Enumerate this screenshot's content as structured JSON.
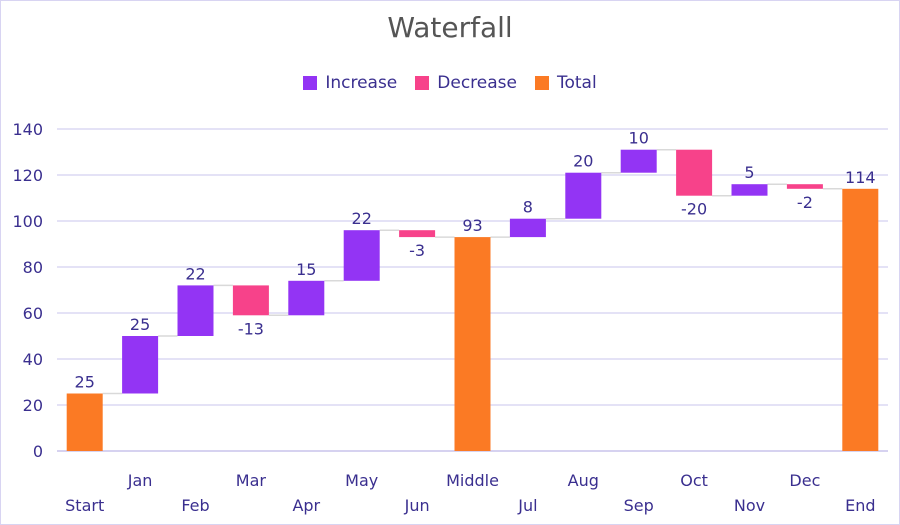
{
  "colors": {
    "increase": "#9334f4",
    "decrease": "#f7428a",
    "total": "#fb7a24",
    "grid": "#c9c4ec",
    "text": "#3a2f8f",
    "connector": "#d9d9d9"
  },
  "chart_data": {
    "type": "bar",
    "subtype": "waterfall",
    "title": "Waterfall",
    "xlabel": "",
    "ylabel": "",
    "ylim": [
      0,
      140
    ],
    "yticks": [
      0,
      20,
      40,
      60,
      80,
      100,
      120,
      140
    ],
    "grid": true,
    "legend_position": "top",
    "legend": [
      {
        "key": "increase",
        "label": "Increase"
      },
      {
        "key": "decrease",
        "label": "Decrease"
      },
      {
        "key": "total",
        "label": "Total"
      }
    ],
    "categories": [
      "Start",
      "Jan",
      "Feb",
      "Mar",
      "Apr",
      "May",
      "Jun",
      "Middle",
      "Jul",
      "Aug",
      "Sep",
      "Oct",
      "Nov",
      "Dec",
      "End"
    ],
    "values": [
      25,
      25,
      22,
      -13,
      15,
      22,
      -3,
      93,
      8,
      20,
      10,
      -20,
      5,
      -2,
      114
    ],
    "kinds": [
      "total",
      "increase",
      "increase",
      "decrease",
      "increase",
      "increase",
      "decrease",
      "total",
      "increase",
      "increase",
      "increase",
      "decrease",
      "increase",
      "decrease",
      "total"
    ],
    "data_labels": [
      "25",
      "25",
      "22",
      "-13",
      "15",
      "22",
      "-3",
      "93",
      "8",
      "20",
      "10",
      "-20",
      "5",
      "-2",
      "114"
    ]
  }
}
